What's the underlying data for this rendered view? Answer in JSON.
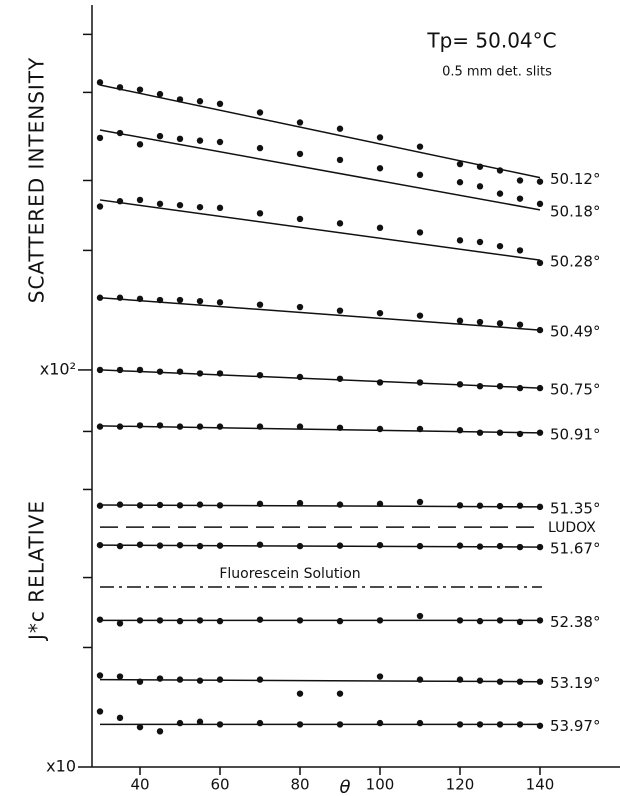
{
  "chart_data": {
    "type": "scatter",
    "annotations": {
      "temperature": "Tp= 50.04°C",
      "slits": "0.5 mm det. slits",
      "fluorescein": "Fluorescein Solution",
      "ludox": "LUDOX"
    },
    "ylabel_upper": "SCATTERED INTENSITY",
    "ylabel_lower": "J*c RELATIVE",
    "xlabel": "θ",
    "xlim": [
      28,
      160
    ],
    "xticks": [
      40,
      60,
      80,
      100,
      120,
      140
    ],
    "ylim": [
      10,
      830
    ],
    "log_y": true,
    "yticks": [
      {
        "value": 10,
        "label": "x10"
      },
      {
        "value": 100,
        "label": "x10²"
      }
    ],
    "yminorticks": [
      20,
      30,
      50,
      70,
      200,
      300,
      500,
      700
    ],
    "color": "#111111",
    "x": [
      30,
      35,
      40,
      45,
      50,
      55,
      60,
      70,
      80,
      90,
      100,
      110,
      120,
      125,
      130,
      135,
      140
    ],
    "reference_lines": [
      {
        "value": 40.2,
        "style": "dashed"
      },
      {
        "value": 28.4,
        "style": "dashdot"
      }
    ],
    "series": [
      {
        "name": "50.12°",
        "fit": [
          522,
          305
        ],
        "values": [
          530,
          515,
          508,
          495,
          480,
          475,
          468,
          445,
          420,
          405,
          385,
          365,
          330,
          325,
          318,
          300,
          298
        ]
      },
      {
        "name": "50.18°",
        "fit": [
          402,
          253
        ],
        "values": [
          384,
          395,
          370,
          388,
          382,
          378,
          375,
          362,
          350,
          338,
          322,
          310,
          297,
          290,
          278,
          270,
          262
        ]
      },
      {
        "name": "50.28°",
        "fit": [
          268,
          189
        ],
        "values": [
          258,
          266,
          268,
          262,
          260,
          257,
          256,
          248,
          240,
          234,
          228,
          222,
          212,
          210,
          205,
          200,
          186
        ]
      },
      {
        "name": "50.49°",
        "fit": [
          152,
          126
        ],
        "values": [
          152,
          152,
          151,
          150,
          150,
          149,
          148,
          146,
          144,
          141,
          139,
          137,
          133,
          132,
          131,
          130,
          126
        ]
      },
      {
        "name": "50.75°",
        "fit": [
          100,
          90
        ],
        "values": [
          100,
          100,
          100,
          99,
          99,
          98,
          98,
          97,
          96,
          95,
          93,
          93,
          92,
          91,
          91,
          90,
          90
        ]
      },
      {
        "name": "50.91°",
        "fit": [
          72.3,
          69.4
        ],
        "values": [
          72,
          72,
          72.5,
          72.5,
          72,
          72,
          72,
          72,
          72,
          71.5,
          71,
          71,
          70.5,
          69.5,
          69.5,
          69,
          69.5
        ]
      },
      {
        "name": "51.35°",
        "fit": [
          45.7,
          45.2
        ],
        "values": [
          45.5,
          45.8,
          45.6,
          45.7,
          45.6,
          45.8,
          45.6,
          46,
          46.2,
          45.8,
          46,
          46.5,
          45.6,
          45.5,
          45.4,
          45.5,
          45.2
        ]
      },
      {
        "name": "51.67°",
        "fit": [
          36.2,
          35.8
        ],
        "values": [
          36.2,
          36,
          36.3,
          36.1,
          36.2,
          36,
          36.1,
          36.3,
          36,
          36.1,
          36.2,
          36,
          36.1,
          35.9,
          36,
          35.8,
          35.8
        ]
      },
      {
        "name": "52.38°",
        "fit": [
          23.4,
          23.4
        ],
        "values": [
          23.5,
          23,
          23.4,
          23.4,
          23.3,
          23.4,
          23.3,
          23.5,
          23.4,
          23.3,
          23.4,
          24,
          23.4,
          23.3,
          23.4,
          23.2,
          23.4
        ]
      },
      {
        "name": "53.19°",
        "fit": [
          16.6,
          16.4
        ],
        "values": [
          17,
          16.9,
          16.4,
          16.7,
          16.6,
          16.5,
          16.6,
          16.6,
          15.3,
          15.3,
          16.9,
          16.6,
          16.6,
          16.5,
          16.4,
          16.4,
          16.4
        ]
      },
      {
        "name": "53.97°",
        "fit": [
          12.8,
          12.8
        ],
        "values": [
          13.8,
          13.3,
          12.6,
          12.3,
          12.9,
          13,
          12.8,
          12.9,
          12.8,
          12.8,
          12.9,
          12.9,
          12.8,
          12.8,
          12.8,
          12.8,
          12.7
        ]
      }
    ]
  }
}
